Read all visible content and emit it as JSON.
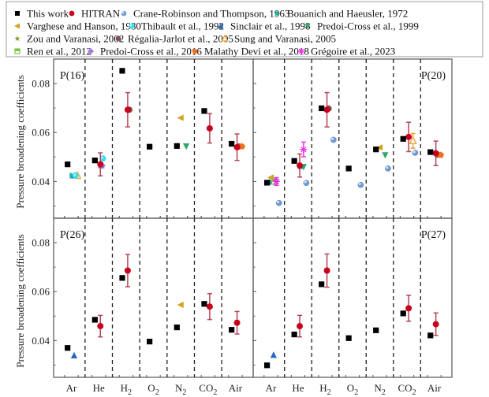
{
  "chart_data": {
    "type": "scatter",
    "title": "",
    "ylabel": "Pressure broadening coefficients",
    "ylim": [
      0.025,
      0.09
    ],
    "yticks": [
      "0.04",
      "0.06",
      "0.08"
    ],
    "ytick_values": [
      0.04,
      0.06,
      0.08
    ],
    "categories": [
      "Ar",
      "He",
      "H2",
      "O2",
      "N2",
      "CO2",
      "Air"
    ],
    "category_labels": [
      {
        "base": "Ar",
        "sub": ""
      },
      {
        "base": "He",
        "sub": ""
      },
      {
        "base": "H",
        "sub": "2"
      },
      {
        "base": "O",
        "sub": "2"
      },
      {
        "base": "N",
        "sub": "2"
      },
      {
        "base": "CO",
        "sub": "2"
      },
      {
        "base": "Air",
        "sub": ""
      }
    ],
    "legend_placement": "top",
    "series": [
      {
        "id": "tw",
        "name": "This work",
        "color": "#000000",
        "shape": "square",
        "offset": -0.14
      },
      {
        "id": "hitran",
        "name": "HITRAN",
        "color": "#c8001c",
        "shape": "circle",
        "offset": 0.06
      },
      {
        "id": "crane",
        "name": "Crane-Robinson and Thompson, 1963",
        "color": "#6f9bd1",
        "shape": "sphere",
        "offset": 0.3
      },
      {
        "id": "bouanich",
        "name": "Bouanich and Haeusler, 1972",
        "color": "#1fb3a3",
        "shape": "tri-right",
        "offset": 0.04
      },
      {
        "id": "varghese",
        "name": "Varghese and Hanson, 1980",
        "color": "#d4a21c",
        "shape": "tri-left",
        "offset": 0.0
      },
      {
        "id": "thibault",
        "name": "Thibault et al., 1992",
        "color": "#35e0f0",
        "shape": "circle-light",
        "offset": 0.15
      },
      {
        "id": "sinclair",
        "name": "Sinclair et al., 1998",
        "color": "#2466c4",
        "shape": "tri-up",
        "offset": 0.1
      },
      {
        "id": "predoi99",
        "name": "Predoi-Cross et al., 1999",
        "color": "#2fa766",
        "shape": "tri-down",
        "offset": 0.2
      },
      {
        "id": "zou",
        "name": "Zou and Varanasi, 2002",
        "color": "#8c8a1e",
        "shape": "star",
        "offset": 0.18
      },
      {
        "id": "regalia",
        "name": "Régalia-Jarlot et al., 2005",
        "color": "#7a5252",
        "shape": "circle",
        "offset": 0.12
      },
      {
        "id": "sung",
        "name": "Sung and Varanasi, 2005",
        "color": "#f2a030",
        "shape": "open-tri-up",
        "offset": 0.22
      },
      {
        "id": "ren",
        "name": "Ren et al., 2012",
        "color": "#7fc241",
        "shape": "half-square",
        "offset": 0.14
      },
      {
        "id": "predoi16",
        "name": "Predoi-Cross et al., 2016",
        "color": "#a777e6",
        "shape": "diamond",
        "offset": 0.12
      },
      {
        "id": "malathy",
        "name": "Malathy Devi et al., 2018",
        "color": "#f07020",
        "shape": "pentagon",
        "offset": 0.24
      },
      {
        "id": "gregoire",
        "name": "Grégoire et al., 2023",
        "color": "#f030f0",
        "shape": "asterisk",
        "offset": 0.2
      }
    ],
    "panels": [
      {
        "label": "P(16)",
        "label_pos": "top-left",
        "points": [
          {
            "s": "tw",
            "c": "Ar",
            "y": 0.047
          },
          {
            "s": "sinclair",
            "c": "Ar",
            "y": 0.0424
          },
          {
            "s": "sung",
            "c": "Ar",
            "y": 0.0424
          },
          {
            "s": "bouanich",
            "c": "Ar",
            "y": 0.0424
          },
          {
            "s": "thibault",
            "c": "Ar",
            "y": 0.0424
          },
          {
            "s": "tw",
            "c": "He",
            "y": 0.0486
          },
          {
            "s": "hitran",
            "c": "He",
            "y": 0.047,
            "err": 0.0047
          },
          {
            "s": "sinclair",
            "c": "He",
            "y": 0.0466
          },
          {
            "s": "predoi16",
            "c": "He",
            "y": 0.0465
          },
          {
            "s": "thibault",
            "c": "He",
            "y": 0.0494
          },
          {
            "s": "tw",
            "c": "H2",
            "y": 0.0852
          },
          {
            "s": "hitran",
            "c": "H2",
            "y": 0.0693,
            "err": 0.007
          },
          {
            "s": "regalia",
            "c": "H2",
            "y": 0.0693
          },
          {
            "s": "tw",
            "c": "O2",
            "y": 0.0542
          },
          {
            "s": "tw",
            "c": "N2",
            "y": 0.0545
          },
          {
            "s": "predoi99",
            "c": "N2",
            "y": 0.0544
          },
          {
            "s": "varghese",
            "c": "N2",
            "y": 0.066
          },
          {
            "s": "tw",
            "c": "CO2",
            "y": 0.0688
          },
          {
            "s": "hitran",
            "c": "CO2",
            "y": 0.0617,
            "err": 0.006
          },
          {
            "s": "tw",
            "c": "Air",
            "y": 0.0554
          },
          {
            "s": "hitran",
            "c": "Air",
            "y": 0.054,
            "err": 0.0054
          },
          {
            "s": "regalia",
            "c": "Air",
            "y": 0.0543
          },
          {
            "s": "zou",
            "c": "Air",
            "y": 0.0543
          },
          {
            "s": "malathy",
            "c": "Air",
            "y": 0.0543
          }
        ]
      },
      {
        "label": "P(20)",
        "label_pos": "top-right",
        "points": [
          {
            "s": "tw",
            "c": "Ar",
            "y": 0.0395
          },
          {
            "s": "bouanich",
            "c": "Ar",
            "y": 0.0397
          },
          {
            "s": "thibault",
            "c": "Ar",
            "y": 0.0397
          },
          {
            "s": "sinclair",
            "c": "Ar",
            "y": 0.04
          },
          {
            "s": "varghese",
            "c": "Ar",
            "y": 0.0416
          },
          {
            "s": "ren",
            "c": "Ar",
            "y": 0.04
          },
          {
            "s": "zou",
            "c": "Ar",
            "y": 0.04
          },
          {
            "s": "gregoire",
            "c": "Ar",
            "y": 0.04,
            "err": 0.0016
          },
          {
            "s": "crane",
            "c": "Ar",
            "y": 0.0312
          },
          {
            "s": "tw",
            "c": "He",
            "y": 0.0484
          },
          {
            "s": "hitran",
            "c": "He",
            "y": 0.0465,
            "err": 0.0047
          },
          {
            "s": "sinclair",
            "c": "He",
            "y": 0.0463
          },
          {
            "s": "predoi99",
            "c": "He",
            "y": 0.046
          },
          {
            "s": "gregoire",
            "c": "He",
            "y": 0.0531,
            "err": 0.003
          },
          {
            "s": "crane",
            "c": "He",
            "y": 0.0394
          },
          {
            "s": "tw",
            "c": "H2",
            "y": 0.0699
          },
          {
            "s": "hitran",
            "c": "H2",
            "y": 0.0693,
            "err": 0.007
          },
          {
            "s": "regalia",
            "c": "H2",
            "y": 0.0698
          },
          {
            "s": "crane",
            "c": "H2",
            "y": 0.057
          },
          {
            "s": "tw",
            "c": "O2",
            "y": 0.0453
          },
          {
            "s": "crane",
            "c": "O2",
            "y": 0.0386
          },
          {
            "s": "tw",
            "c": "N2",
            "y": 0.0531
          },
          {
            "s": "varghese",
            "c": "N2",
            "y": 0.0539
          },
          {
            "s": "predoi99",
            "c": "N2",
            "y": 0.0508
          },
          {
            "s": "crane",
            "c": "N2",
            "y": 0.0453
          },
          {
            "s": "tw",
            "c": "CO2",
            "y": 0.0574
          },
          {
            "s": "hitran",
            "c": "CO2",
            "y": 0.0582,
            "err": 0.006
          },
          {
            "s": "sung",
            "c": "CO2",
            "y": 0.0566,
            "err": 0.003
          },
          {
            "s": "crane",
            "c": "CO2",
            "y": 0.0517
          },
          {
            "s": "tw",
            "c": "Air",
            "y": 0.052
          },
          {
            "s": "hitran",
            "c": "Air",
            "y": 0.0515,
            "err": 0.005
          },
          {
            "s": "regalia",
            "c": "Air",
            "y": 0.051
          },
          {
            "s": "zou",
            "c": "Air",
            "y": 0.0508
          },
          {
            "s": "malathy",
            "c": "Air",
            "y": 0.0508
          }
        ]
      },
      {
        "label": "P(26)",
        "label_pos": "top-left",
        "points": [
          {
            "s": "tw",
            "c": "Ar",
            "y": 0.037
          },
          {
            "s": "sinclair",
            "c": "Ar",
            "y": 0.0339
          },
          {
            "s": "tw",
            "c": "He",
            "y": 0.0485
          },
          {
            "s": "hitran",
            "c": "He",
            "y": 0.0459,
            "err": 0.0044
          },
          {
            "s": "tw",
            "c": "H2",
            "y": 0.0656
          },
          {
            "s": "hitran",
            "c": "H2",
            "y": 0.0686,
            "err": 0.0066
          },
          {
            "s": "tw",
            "c": "O2",
            "y": 0.0396
          },
          {
            "s": "tw",
            "c": "N2",
            "y": 0.0454
          },
          {
            "s": "varghese",
            "c": "N2",
            "y": 0.0546
          },
          {
            "s": "tw",
            "c": "CO2",
            "y": 0.055
          },
          {
            "s": "hitran",
            "c": "CO2",
            "y": 0.0539,
            "err": 0.0053
          },
          {
            "s": "tw",
            "c": "Air",
            "y": 0.0444
          },
          {
            "s": "hitran",
            "c": "Air",
            "y": 0.0473,
            "err": 0.0046
          }
        ]
      },
      {
        "label": "P(27)",
        "label_pos": "top-right",
        "points": [
          {
            "s": "tw",
            "c": "Ar",
            "y": 0.0299
          },
          {
            "s": "sinclair",
            "c": "Ar",
            "y": 0.0341
          },
          {
            "s": "tw",
            "c": "He",
            "y": 0.0425
          },
          {
            "s": "hitran",
            "c": "He",
            "y": 0.0459,
            "err": 0.0044
          },
          {
            "s": "tw",
            "c": "H2",
            "y": 0.063
          },
          {
            "s": "hitran",
            "c": "H2",
            "y": 0.0686,
            "err": 0.0068
          },
          {
            "s": "tw",
            "c": "O2",
            "y": 0.041
          },
          {
            "s": "tw",
            "c": "N2",
            "y": 0.0442
          },
          {
            "s": "tw",
            "c": "CO2",
            "y": 0.0511
          },
          {
            "s": "hitran",
            "c": "CO2",
            "y": 0.0532,
            "err": 0.0053
          },
          {
            "s": "tw",
            "c": "Air",
            "y": 0.0421
          },
          {
            "s": "hitran",
            "c": "Air",
            "y": 0.0467,
            "err": 0.0046
          }
        ]
      }
    ]
  }
}
